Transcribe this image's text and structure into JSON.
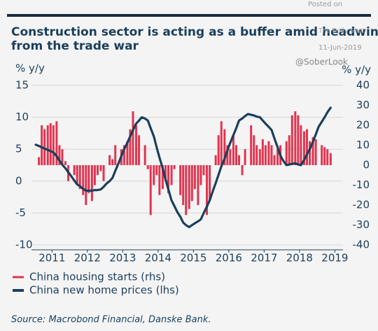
{
  "chart_data": {
    "type": "bar_line",
    "title": "Construction sector is acting as a buffer amid headwind from the trade war",
    "ylabel": "% y/y",
    "y2label": "% y/y",
    "source": "Source: Macrobond Financial, Danske Bank.",
    "annotations": [
      "Posted on",
      "The Daily Shot",
      "11-Jun-2019",
      "@SoberLook"
    ],
    "x": [
      2011.04,
      2011.13,
      2011.21,
      2011.29,
      2011.38,
      2011.46,
      2011.54,
      2011.63,
      2011.71,
      2011.79,
      2011.88,
      2011.96,
      2012.04,
      2012.13,
      2012.21,
      2012.29,
      2012.38,
      2012.46,
      2012.54,
      2012.63,
      2012.71,
      2012.79,
      2012.88,
      2012.96,
      2013.04,
      2013.13,
      2013.21,
      2013.29,
      2013.38,
      2013.46,
      2013.54,
      2013.63,
      2013.71,
      2013.79,
      2013.88,
      2013.96,
      2014.04,
      2014.13,
      2014.21,
      2014.29,
      2014.38,
      2014.46,
      2014.54,
      2014.63,
      2014.71,
      2014.79,
      2014.88,
      2014.96,
      2015.04,
      2015.13,
      2015.21,
      2015.29,
      2015.38,
      2015.46,
      2015.54,
      2015.63,
      2015.71,
      2015.79,
      2015.88,
      2015.96,
      2016.04,
      2016.13,
      2016.21,
      2016.29,
      2016.38,
      2016.46,
      2016.54,
      2016.63,
      2016.71,
      2016.79,
      2016.88,
      2016.96,
      2017.04,
      2017.13,
      2017.21,
      2017.29,
      2017.38,
      2017.46,
      2017.54,
      2017.63,
      2017.71,
      2017.79,
      2017.88,
      2017.96,
      2018.04,
      2018.13,
      2018.21,
      2018.29,
      2018.38,
      2018.46,
      2018.54,
      2018.63,
      2018.71,
      2018.79,
      2018.88,
      2018.96,
      2019.04,
      2019.13,
      2019.21,
      2019.29,
      2019.38
    ],
    "series": [
      {
        "name": "China housing starts (rhs)",
        "color": "#e0344f",
        "axis": "y2",
        "kind": "bar",
        "values": [
          null,
          4,
          20,
          18,
          20,
          21,
          20,
          22,
          10,
          8,
          2,
          -8,
          null,
          -5,
          -10,
          -12,
          -15,
          -20,
          -14,
          -18,
          -10,
          -5,
          -3,
          -8,
          null,
          5,
          3,
          10,
          0,
          8,
          10,
          12,
          18,
          27,
          20,
          15,
          null,
          10,
          -2,
          -25,
          -10,
          -5,
          -15,
          -12,
          -8,
          -14,
          -10,
          -2,
          null,
          -15,
          -20,
          -25,
          -22,
          -18,
          -12,
          -20,
          -10,
          -5,
          -25,
          -18,
          null,
          5,
          15,
          22,
          18,
          10,
          8,
          15,
          10,
          5,
          -5,
          8,
          null,
          20,
          15,
          10,
          8,
          13,
          10,
          12,
          10,
          5,
          8,
          10,
          null,
          12,
          15,
          25,
          27,
          25,
          20,
          17,
          18,
          12,
          14,
          13,
          null,
          10,
          9,
          8,
          6
        ]
      },
      {
        "name": "China new home prices (lhs)",
        "color": "#1b3f5c",
        "kind": "line",
        "values": [
          5.7,
          5.5,
          5.3,
          5.1,
          4.9,
          4.7,
          4.5,
          3.9,
          3.2,
          2.6,
          2.0,
          1.4,
          0.8,
          0.1,
          -0.5,
          -0.8,
          -1.2,
          -1.5,
          -1.5,
          -1.5,
          -1.4,
          -1.4,
          -1.3,
          -0.9,
          -0.4,
          0.0,
          0.5,
          1.6,
          2.8,
          3.9,
          5.0,
          6.0,
          7.0,
          8.0,
          9.0,
          9.5,
          10.0,
          9.8,
          9.5,
          8.3,
          7.0,
          5.3,
          3.7,
          2.0,
          0.3,
          -1.3,
          -3.0,
          -3.9,
          -4.8,
          -5.6,
          -6.5,
          -6.9,
          -7.2,
          -6.9,
          -6.6,
          -6.3,
          -6.0,
          -5.0,
          -4.0,
          -3.0,
          -1.7,
          -0.3,
          1.0,
          2.3,
          3.5,
          4.8,
          6.0,
          7.2,
          8.3,
          9.5,
          9.8,
          10.2,
          10.5,
          10.4,
          10.3,
          10.1,
          10.0,
          9.5,
          9.0,
          8.5,
          8.0,
          6.7,
          5.3,
          4.0,
          3.2,
          2.5,
          2.6,
          2.7,
          2.8,
          2.6,
          2.5,
          3.3,
          4.2,
          5.0,
          6.2,
          7.3,
          8.5,
          9.3,
          10.0,
          10.8,
          11.5
        ]
      }
    ],
    "xlim": [
      2010.92,
      2019.73
    ],
    "xticks": [
      {
        "value": 2011.5,
        "label": "2011"
      },
      {
        "value": 2012.5,
        "label": "2012"
      },
      {
        "value": 2013.5,
        "label": "2013"
      },
      {
        "value": 2014.5,
        "label": "2014"
      },
      {
        "value": 2015.5,
        "label": "2015"
      },
      {
        "value": 2016.5,
        "label": "2016"
      },
      {
        "value": 2017.5,
        "label": "2017"
      },
      {
        "value": 2018.5,
        "label": "2018"
      },
      {
        "value": 2019.5,
        "label": "2019"
      }
    ],
    "ylim": [
      -10,
      15
    ],
    "yticks": [
      15,
      10,
      5,
      0,
      -5,
      -10
    ],
    "y2lim": [
      -40,
      40
    ],
    "y2ticks": [
      40,
      30,
      20,
      10,
      0,
      -10,
      -20,
      -30,
      -40
    ],
    "grid": true
  }
}
